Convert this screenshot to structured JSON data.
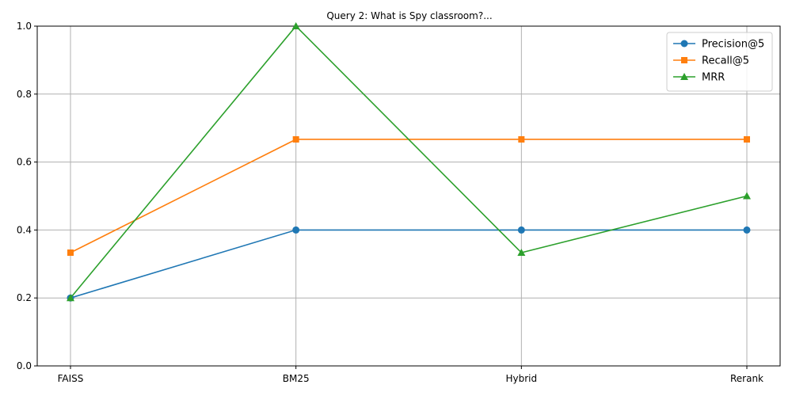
{
  "chart_data": {
    "type": "line",
    "title": "Query 2: What is Spy classroom?...",
    "xlabel": "",
    "ylabel": "",
    "categories": [
      "FAISS",
      "BM25",
      "Hybrid",
      "Rerank"
    ],
    "ylim": [
      0,
      1.0
    ],
    "yticks": [
      "0.0",
      "0.2",
      "0.4",
      "0.6",
      "0.8",
      "1.0"
    ],
    "grid": true,
    "legend_position": "top-right",
    "series": [
      {
        "name": "Precision@5",
        "values": [
          0.2,
          0.4,
          0.4,
          0.4
        ],
        "color": "#1f77b4",
        "marker": "circle"
      },
      {
        "name": "Recall@5",
        "values": [
          0.3333,
          0.6667,
          0.6667,
          0.6667
        ],
        "color": "#ff7f0e",
        "marker": "square"
      },
      {
        "name": "MRR",
        "values": [
          0.2,
          1.0,
          0.3333,
          0.5
        ],
        "color": "#2ca02c",
        "marker": "triangle"
      }
    ]
  }
}
